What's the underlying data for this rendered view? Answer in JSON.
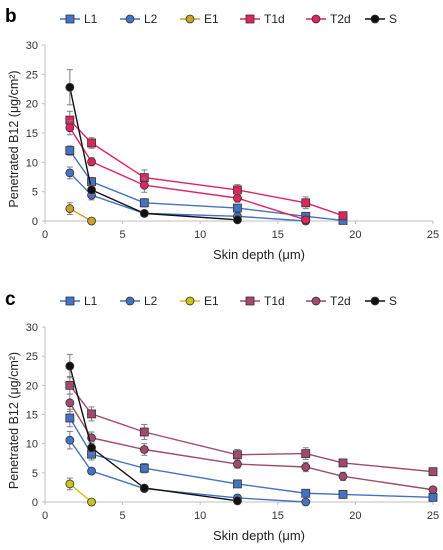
{
  "chart_data": [
    {
      "panel_label": "b",
      "type": "line",
      "xlabel": "Skin depth (μm)",
      "ylabel": "Penetrated B12 (μg/cm²)",
      "xlim": [
        0,
        25
      ],
      "ylim": [
        0,
        30
      ],
      "x_ticks": [
        0,
        5,
        10,
        15,
        20,
        25
      ],
      "y_ticks": [
        0,
        5,
        10,
        15,
        20,
        25,
        30
      ],
      "grid": false,
      "legend_position": "top",
      "series": [
        {
          "name": "L1",
          "marker": "square",
          "color": "#4472C4",
          "x": [
            1.6,
            3.0,
            6.4,
            12.4,
            16.8,
            19.2
          ],
          "y": [
            12.0,
            6.7,
            3.1,
            2.2,
            0.8,
            0.1
          ],
          "err": [
            0.8,
            0.7,
            0.7,
            0.4,
            0.3,
            0.1
          ]
        },
        {
          "name": "L2",
          "marker": "circle",
          "color": "#4472C4",
          "x": [
            1.6,
            3.0,
            6.4,
            12.4,
            16.8
          ],
          "y": [
            8.2,
            4.4,
            1.3,
            0.8,
            0.0
          ],
          "err": [
            1.0,
            0.8,
            0.3,
            0.3,
            0.0
          ]
        },
        {
          "name": "E1",
          "marker": "circle",
          "color": "#C9A227",
          "x": [
            1.6,
            3.0
          ],
          "y": [
            2.1,
            0.0
          ],
          "err": [
            1.0,
            0.0
          ]
        },
        {
          "name": "T1d",
          "marker": "square",
          "color": "#E0245E",
          "x": [
            1.6,
            3.0,
            6.4,
            12.4,
            16.8,
            19.2
          ],
          "y": [
            17.2,
            13.3,
            7.4,
            5.3,
            3.1,
            0.9
          ],
          "err": [
            1.5,
            0.9,
            1.3,
            0.9,
            1.0,
            0.2
          ]
        },
        {
          "name": "T2d",
          "marker": "circle",
          "color": "#E0245E",
          "x": [
            1.6,
            3.0,
            6.4,
            12.4,
            16.8
          ],
          "y": [
            15.9,
            10.1,
            6.1,
            3.9,
            0.2
          ],
          "err": [
            1.2,
            0.7,
            1.2,
            0.7,
            0.2
          ]
        },
        {
          "name": "S",
          "marker": "circle",
          "color": "#111111",
          "x": [
            1.6,
            3.0,
            6.4,
            12.4
          ],
          "y": [
            22.8,
            5.3,
            1.3,
            0.2
          ],
          "err": [
            3.0,
            0.8,
            0.3,
            0.1
          ]
        }
      ]
    },
    {
      "panel_label": "c",
      "type": "line",
      "xlabel": "Skin depth (μm)",
      "ylabel": "Penetrated B12 (μg/cm²)",
      "xlim": [
        0,
        25
      ],
      "ylim": [
        0,
        30
      ],
      "x_ticks": [
        0,
        5,
        10,
        15,
        20,
        25
      ],
      "y_ticks": [
        0,
        5,
        10,
        15,
        20,
        25,
        30
      ],
      "grid": false,
      "legend_position": "top",
      "series": [
        {
          "name": "L1",
          "marker": "square",
          "color": "#4472C4",
          "x": [
            1.6,
            3.0,
            6.4,
            12.4,
            16.8,
            19.2,
            25.0
          ],
          "y": [
            14.4,
            8.2,
            5.8,
            3.1,
            1.5,
            1.3,
            0.8
          ],
          "err": [
            1.5,
            1.0,
            0.8,
            0.5,
            0.6,
            0.4,
            0.3
          ]
        },
        {
          "name": "L2",
          "marker": "circle",
          "color": "#4472C4",
          "x": [
            1.6,
            3.0,
            6.4,
            12.4,
            16.8
          ],
          "y": [
            10.6,
            5.3,
            2.3,
            0.7,
            0.0
          ],
          "err": [
            1.5,
            0.5,
            0.4,
            0.2,
            0.0
          ]
        },
        {
          "name": "E1",
          "marker": "circle",
          "color": "#C9C31F",
          "x": [
            1.6,
            3.0
          ],
          "y": [
            3.1,
            0.0
          ],
          "err": [
            1.0,
            0.0
          ]
        },
        {
          "name": "T1d",
          "marker": "square",
          "color": "#A24A6E",
          "x": [
            1.6,
            3.0,
            6.4,
            12.4,
            16.8,
            19.2,
            25.0
          ],
          "y": [
            20.0,
            15.1,
            12.0,
            8.1,
            8.3,
            6.7,
            5.2
          ],
          "err": [
            1.5,
            1.2,
            1.3,
            0.9,
            1.0,
            0.5,
            0.5
          ]
        },
        {
          "name": "T2d",
          "marker": "circle",
          "color": "#A24A6E",
          "x": [
            1.6,
            3.0,
            6.4,
            12.4,
            16.8,
            19.2,
            25.0
          ],
          "y": [
            17.0,
            11.0,
            9.0,
            6.5,
            6.0,
            4.4,
            2.1
          ],
          "err": [
            1.5,
            1.0,
            1.0,
            0.7,
            0.8,
            0.7,
            0.4
          ]
        },
        {
          "name": "S",
          "marker": "circle",
          "color": "#111111",
          "x": [
            1.6,
            3.0,
            6.4,
            12.4
          ],
          "y": [
            23.3,
            9.3,
            2.4,
            0.2
          ],
          "err": [
            2.0,
            1.0,
            0.3,
            0.1
          ]
        }
      ]
    }
  ]
}
